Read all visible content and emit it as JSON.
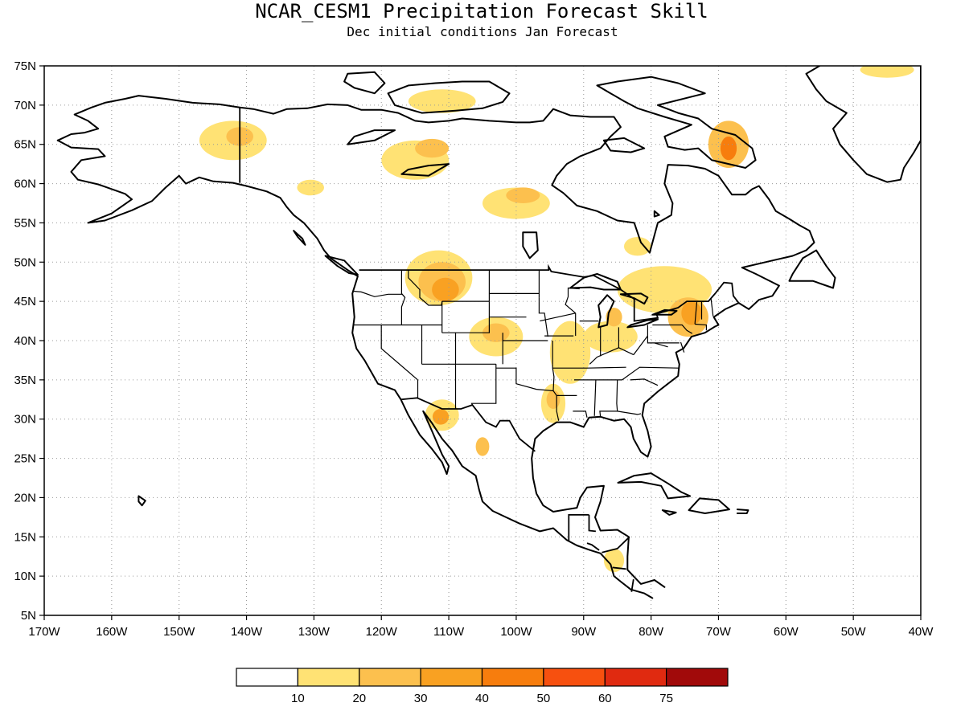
{
  "title": "NCAR_CESM1 Precipitation Forecast Skill",
  "subtitle": "Dec initial conditions  Jan Forecast",
  "map": {
    "lon_range": [
      -170,
      -40
    ],
    "lat_range": [
      5,
      75
    ],
    "gridlines": "dotted",
    "boundaries": [
      "coastlines",
      "national borders",
      "US state borders"
    ],
    "lon_labels": [
      "170W",
      "160W",
      "150W",
      "140W",
      "130W",
      "120W",
      "110W",
      "100W",
      "90W",
      "80W",
      "70W",
      "60W",
      "50W",
      "40W"
    ],
    "lat_labels": [
      "5N",
      "10N",
      "15N",
      "20N",
      "25N",
      "30N",
      "35N",
      "40N",
      "45N",
      "50N",
      "55N",
      "60N",
      "65N",
      "70N",
      "75N"
    ]
  },
  "colorbar": {
    "colors": [
      "#ffffff",
      "#ffe274",
      "#fcc04e",
      "#f9a122",
      "#f77d0d",
      "#f7500f",
      "#e02a10",
      "#a10a0a"
    ],
    "labels": [
      "10",
      "20",
      "30",
      "40",
      "50",
      "60",
      "75"
    ]
  },
  "skill_patches": [
    {
      "region": "Alaska interior",
      "lon": -142,
      "lat": 65.5,
      "rx": 5,
      "ry": 2.5,
      "level": 1
    },
    {
      "region": "Alaska interior core",
      "lon": -141,
      "lat": 66,
      "rx": 2,
      "ry": 1.2,
      "level": 2
    },
    {
      "region": "Yukon",
      "lon": -130.5,
      "lat": 59.5,
      "rx": 2,
      "ry": 1,
      "level": 1
    },
    {
      "region": "Montana/Alberta",
      "lon": -111.5,
      "lat": 48,
      "rx": 5,
      "ry": 3.5,
      "level": 1
    },
    {
      "region": "Montana/Alberta mid",
      "lon": -111,
      "lat": 47.5,
      "rx": 3.5,
      "ry": 2.5,
      "level": 2
    },
    {
      "region": "Montana/Alberta core",
      "lon": -110.5,
      "lat": 46.5,
      "rx": 2,
      "ry": 1.5,
      "level": 3
    },
    {
      "region": "Nebraska/Kansas",
      "lon": -103,
      "lat": 40.5,
      "rx": 4,
      "ry": 2.5,
      "level": 1
    },
    {
      "region": "Nebraska/Kansas core",
      "lon": -103,
      "lat": 41,
      "rx": 2,
      "ry": 1.2,
      "level": 2
    },
    {
      "region": "Mississippi valley",
      "lon": -92,
      "lat": 38.5,
      "rx": 3,
      "ry": 4,
      "level": 1
    },
    {
      "region": "Ohio valley",
      "lon": -86,
      "lat": 40.5,
      "rx": 4,
      "ry": 2,
      "level": 1
    },
    {
      "region": "Michigan",
      "lon": -85.5,
      "lat": 43,
      "rx": 1.2,
      "ry": 1.2,
      "level": 2
    },
    {
      "region": "Louisiana",
      "lon": -94.5,
      "lat": 32,
      "rx": 1.8,
      "ry": 2.5,
      "level": 1
    },
    {
      "region": "Louisiana core",
      "lon": -94.5,
      "lat": 32.5,
      "rx": 1,
      "ry": 1.2,
      "level": 2
    },
    {
      "region": "Sonora",
      "lon": -111,
      "lat": 30.5,
      "rx": 2.5,
      "ry": 2,
      "level": 1
    },
    {
      "region": "Sonora core",
      "lon": -111.2,
      "lat": 30.3,
      "rx": 1.2,
      "ry": 1,
      "level": 3
    },
    {
      "region": "Central Mexico",
      "lon": -105,
      "lat": 26.5,
      "rx": 1,
      "ry": 1.2,
      "level": 2
    },
    {
      "region": "Great Lakes / Ontario",
      "lon": -78,
      "lat": 46.5,
      "rx": 7,
      "ry": 3,
      "level": 1
    },
    {
      "region": "New York / New England",
      "lon": -74.5,
      "lat": 43,
      "rx": 3,
      "ry": 2.5,
      "level": 2
    },
    {
      "region": "New England core",
      "lon": -74,
      "lat": 43.5,
      "rx": 1.5,
      "ry": 1.5,
      "level": 3
    },
    {
      "region": "Hudson Bay west",
      "lon": -100,
      "lat": 57.5,
      "rx": 5,
      "ry": 2,
      "level": 1
    },
    {
      "region": "Hudson Bay west core",
      "lon": -99,
      "lat": 58.5,
      "rx": 2.5,
      "ry": 1,
      "level": 2
    },
    {
      "region": "Northwest Territories",
      "lon": -115,
      "lat": 63,
      "rx": 5,
      "ry": 2.5,
      "level": 1
    },
    {
      "region": "Northwest Territories core",
      "lon": -112.5,
      "lat": 64.5,
      "rx": 2.5,
      "ry": 1.2,
      "level": 2
    },
    {
      "region": "Victoria Island",
      "lon": -111,
      "lat": 70.5,
      "rx": 5,
      "ry": 1.5,
      "level": 1
    },
    {
      "region": "Baffin Island",
      "lon": -68.5,
      "lat": 65,
      "rx": 3,
      "ry": 3,
      "level": 2
    },
    {
      "region": "Baffin Island core",
      "lon": -68.5,
      "lat": 64.5,
      "rx": 1.2,
      "ry": 1.5,
      "level": 4
    },
    {
      "region": "Greenland NE",
      "lon": -45,
      "lat": 74.5,
      "rx": 4,
      "ry": 1,
      "level": 1
    },
    {
      "region": "Quebec",
      "lon": -82,
      "lat": 52,
      "rx": 2,
      "ry": 1.2,
      "level": 1
    },
    {
      "region": "Central America",
      "lon": -85.5,
      "lat": 12,
      "rx": 1.5,
      "ry": 1.5,
      "level": 1
    }
  ]
}
